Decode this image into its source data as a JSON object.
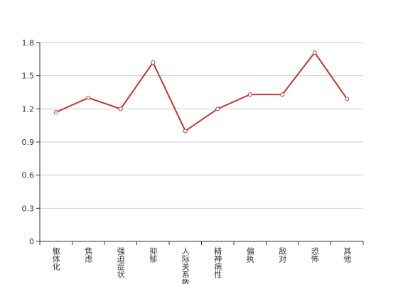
{
  "chart_data": {
    "type": "line",
    "categories": [
      "躯体化",
      "焦虑",
      "强迫症状",
      "抑郁",
      "人际关系敏感",
      "精神病性",
      "偏执",
      "敌对",
      "恐怖",
      "其他"
    ],
    "values": [
      1.17,
      1.3,
      1.2,
      1.62,
      1.0,
      1.2,
      1.33,
      1.33,
      1.71,
      1.29
    ],
    "color": "#c23531",
    "ylim": [
      0,
      1.8
    ],
    "yticks": [
      0,
      0.3,
      0.6,
      0.9,
      1.2,
      1.5,
      1.8
    ],
    "grid": true
  }
}
